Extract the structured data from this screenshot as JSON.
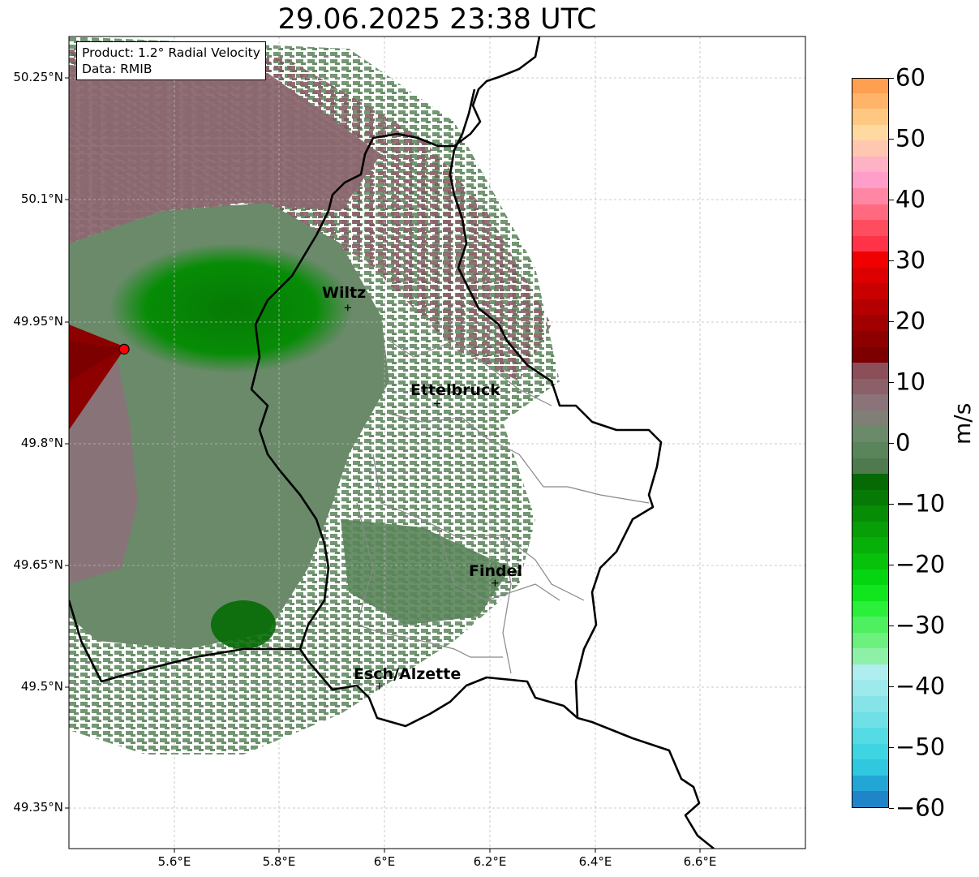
{
  "title": "29.06.2025 23:38 UTC",
  "info": {
    "product": "Product: 1.2° Radial Velocity",
    "data": "Data: RMIB"
  },
  "map": {
    "lon_range": [
      5.4,
      6.8
    ],
    "lat_range": [
      49.3,
      50.3
    ],
    "gridlines": true,
    "radar_site": {
      "lon": 5.505,
      "lat": 49.915,
      "marker_color": "#ff0000"
    },
    "y_ticks": [
      "50.25°N",
      "50.1°N",
      "49.95°N",
      "49.8°N",
      "49.65°N",
      "49.5°N",
      "49.35°N"
    ],
    "x_ticks": [
      "5.6°E",
      "5.8°E",
      "6°E",
      "6.2°E",
      "6.4°E",
      "6.6°E"
    ],
    "cities": [
      {
        "name": "Wiltz",
        "lon": 5.93,
        "lat": 49.966
      },
      {
        "name": "Ettelbruck",
        "lon": 6.1,
        "lat": 49.848
      },
      {
        "name": "Findel",
        "lon": 6.21,
        "lat": 49.627
      },
      {
        "name": "Esch/Alzette",
        "lon": 5.99,
        "lat": 49.5
      }
    ]
  },
  "colorbar": {
    "label": "m/s",
    "min": -60,
    "max": 60,
    "ticks": [
      "60",
      "50",
      "40",
      "30",
      "20",
      "10",
      "0",
      "−10",
      "−20",
      "−30",
      "−40",
      "−50",
      "−60"
    ],
    "colors": [
      "#1f84c8",
      "#23a6d5",
      "#2fc8df",
      "#3fd4e1",
      "#55dbe3",
      "#6ee0e6",
      "#86e4e9",
      "#9ee9ec",
      "#b0edef",
      "#8ff0a8",
      "#6cf07e",
      "#4ef060",
      "#2af03a",
      "#10e51e",
      "#05d410",
      "#06c20a",
      "#07b008",
      "#079e07",
      "#078c06",
      "#067a05",
      "#056a04",
      "#4e7a4e",
      "#5a845a",
      "#6a8a6a",
      "#7f7f75",
      "#8a7379",
      "#8b6068",
      "#8a4f59",
      "#7c0000",
      "#8c0000",
      "#a00000",
      "#b40000",
      "#c80000",
      "#dc0000",
      "#f00000",
      "#ff3347",
      "#ff4d60",
      "#ff6a80",
      "#ff86a4",
      "#ff9ec8",
      "#ffb1c6",
      "#ffc7b0",
      "#ffd9a0",
      "#ffc882",
      "#ffb46a",
      "#ffa050"
    ]
  }
}
